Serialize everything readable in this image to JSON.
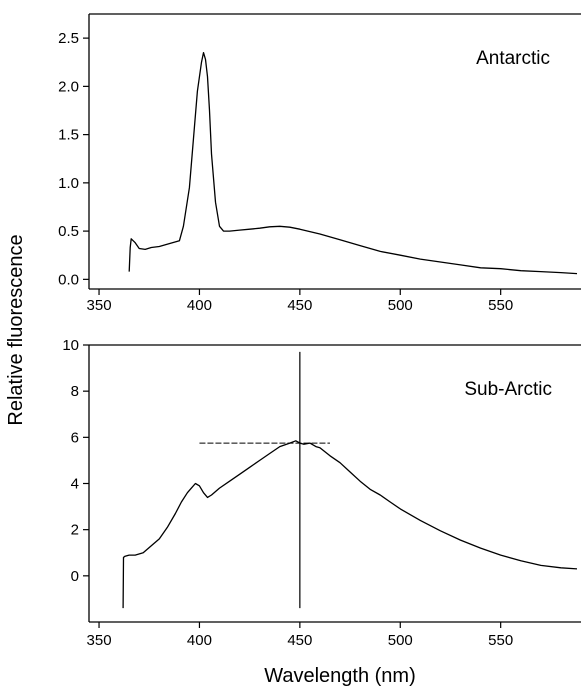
{
  "figure": {
    "ylabel": "Relative fluorescence",
    "xlabel": "Wavelength (nm)"
  },
  "chart_data": [
    {
      "type": "line",
      "annotation": "Antarctic",
      "xlim": [
        345,
        590
      ],
      "ylim": [
        -0.1,
        2.75
      ],
      "x_ticks": [
        350,
        400,
        450,
        500,
        550
      ],
      "y_ticks": [
        0.0,
        0.5,
        1.0,
        1.5,
        2.0,
        2.5
      ],
      "y_tick_labels": [
        "0.0",
        "0.5",
        "1.0",
        "1.5",
        "2.0",
        "2.5"
      ],
      "series": [
        {
          "x": [
            365,
            365.5,
            366,
            368,
            370,
            373,
            376,
            380,
            385,
            390,
            392,
            395,
            397,
            399,
            401,
            402,
            403,
            404,
            405,
            406,
            408,
            410,
            412,
            415,
            420,
            425,
            430,
            435,
            440,
            445,
            450,
            460,
            470,
            480,
            490,
            500,
            510,
            520,
            530,
            540,
            550,
            560,
            570,
            580,
            588
          ],
          "y": [
            0.08,
            0.33,
            0.42,
            0.38,
            0.32,
            0.31,
            0.33,
            0.34,
            0.37,
            0.4,
            0.55,
            0.95,
            1.45,
            1.95,
            2.25,
            2.35,
            2.28,
            2.1,
            1.75,
            1.3,
            0.8,
            0.55,
            0.5,
            0.5,
            0.51,
            0.52,
            0.53,
            0.545,
            0.55,
            0.54,
            0.52,
            0.47,
            0.41,
            0.35,
            0.29,
            0.25,
            0.21,
            0.18,
            0.15,
            0.12,
            0.11,
            0.09,
            0.08,
            0.07,
            0.06
          ]
        }
      ]
    },
    {
      "type": "line",
      "annotation": "Sub-Arctic",
      "xlim": [
        345,
        590
      ],
      "ylim": [
        -2,
        10
      ],
      "x_ticks": [
        350,
        400,
        450,
        500,
        550
      ],
      "y_ticks": [
        0,
        2,
        4,
        6,
        8,
        10
      ],
      "y_tick_labels": [
        "0",
        "2",
        "4",
        "6",
        "8",
        "10"
      ],
      "series": [
        {
          "x": [
            362,
            362.2,
            363,
            365,
            368,
            372,
            376,
            380,
            384,
            388,
            391,
            394,
            396,
            398,
            400,
            402,
            404,
            406,
            410,
            415,
            420,
            425,
            430,
            435,
            440,
            445,
            448,
            450,
            452,
            455,
            458,
            460,
            465,
            470,
            475,
            480,
            485,
            490,
            495,
            500,
            510,
            520,
            530,
            540,
            550,
            560,
            570,
            580,
            588
          ],
          "y": [
            -1.4,
            0.8,
            0.85,
            0.9,
            0.9,
            1.0,
            1.3,
            1.6,
            2.1,
            2.7,
            3.2,
            3.6,
            3.8,
            4.0,
            3.9,
            3.6,
            3.4,
            3.5,
            3.8,
            4.1,
            4.4,
            4.7,
            5.0,
            5.3,
            5.6,
            5.75,
            5.85,
            5.75,
            5.7,
            5.75,
            5.6,
            5.55,
            5.2,
            4.9,
            4.5,
            4.1,
            3.75,
            3.5,
            3.2,
            2.9,
            2.4,
            1.95,
            1.55,
            1.2,
            0.9,
            0.65,
            0.45,
            0.35,
            0.3
          ]
        }
      ],
      "crosshair": {
        "vertical": {
          "x": 450,
          "y_from": -1.4,
          "y_to": 9.7
        },
        "horizontal": {
          "y": 5.75,
          "x_from": 400,
          "x_to": 465
        }
      }
    }
  ]
}
